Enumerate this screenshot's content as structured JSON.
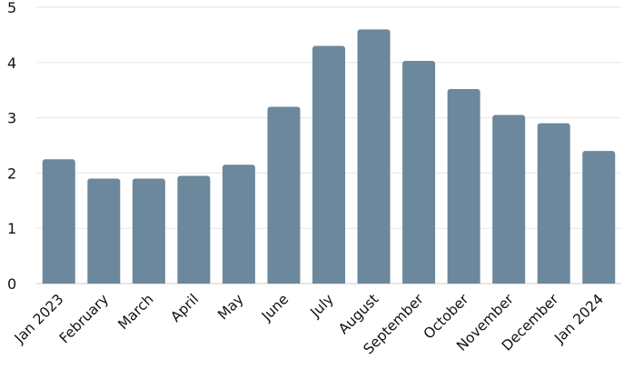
{
  "chart_data": {
    "type": "bar",
    "categories": [
      "Jan 2023",
      "February",
      "March",
      "April",
      "May",
      "June",
      "July",
      "August",
      "September",
      "October",
      "November",
      "December",
      "Jan 2024"
    ],
    "values": [
      2.25,
      1.9,
      1.9,
      1.95,
      2.15,
      3.2,
      4.3,
      4.6,
      4.03,
      3.52,
      3.05,
      2.9,
      2.4
    ],
    "title": "",
    "xlabel": "",
    "ylabel": "",
    "ylim": [
      0,
      5
    ],
    "yticks": [
      "0",
      "1",
      "2",
      "3",
      "4",
      "5"
    ],
    "grid": true,
    "legend": "none",
    "bar_color": "#6b889c",
    "grid_color": "#e6e6e6"
  }
}
